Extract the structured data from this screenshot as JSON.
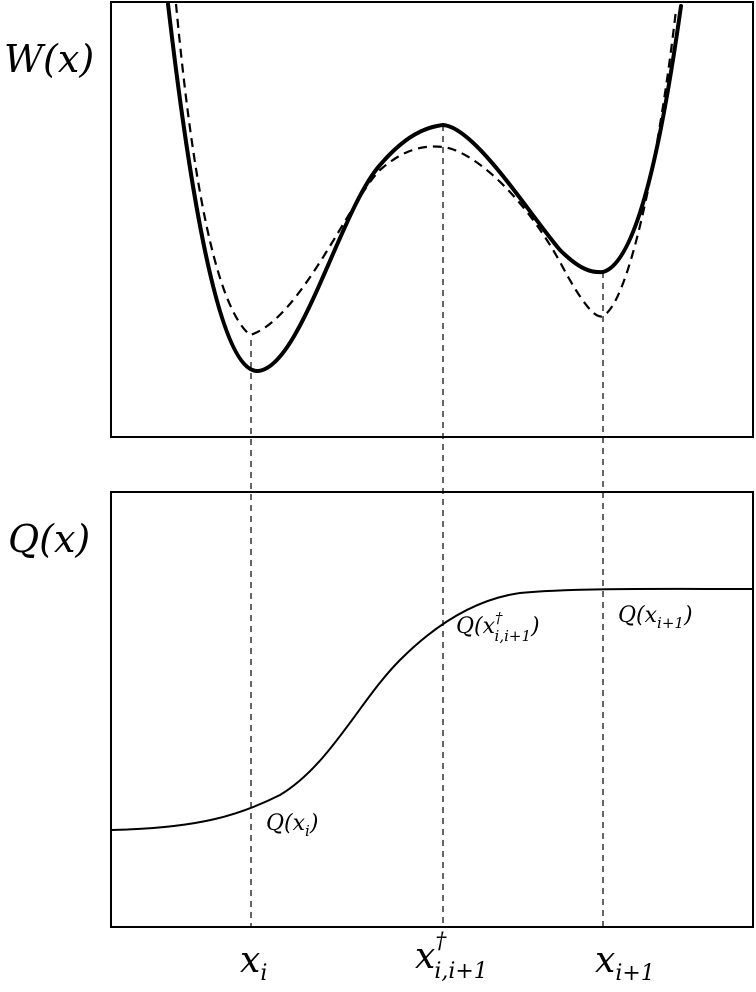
{
  "chart_data": [
    {
      "type": "line",
      "ylabel": "W(x)",
      "series": [
        {
          "style": "solid",
          "x": [
            0.9,
            1.0,
            1.3,
            1.7,
            2.0,
            2.5,
            2.97,
            3.5,
            4.0,
            4.45,
            4.8,
            5.0,
            5.15
          ],
          "values": [
            1.0,
            0.88,
            0.42,
            0.12,
            0.24,
            0.6,
            0.75,
            0.58,
            0.42,
            0.38,
            0.65,
            0.85,
            1.0
          ]
        },
        {
          "style": "dashed",
          "x": [
            0.9,
            1.0,
            1.3,
            1.7,
            2.0,
            2.5,
            2.97,
            3.5,
            4.0,
            4.45,
            4.8,
            5.0,
            5.15
          ],
          "values": [
            1.0,
            0.8,
            0.38,
            0.22,
            0.32,
            0.6,
            0.7,
            0.52,
            0.33,
            0.28,
            0.55,
            0.8,
            1.0
          ]
        }
      ]
    },
    {
      "type": "line",
      "ylabel": "Q(x)",
      "series": [
        {
          "style": "solid",
          "x": [
            0,
            1.0,
            2.0,
            3.0,
            4.0,
            5.0,
            6.0
          ],
          "values": [
            0.1,
            0.14,
            0.3,
            0.62,
            0.8,
            0.84,
            0.85
          ]
        }
      ]
    }
  ],
  "labels": {
    "w_axis": "W(x)",
    "q_axis": "Q(x)",
    "x_i": "x",
    "x_i_sub": "i",
    "x_dagger": "x",
    "x_dagger_sup": "†",
    "x_dagger_sub": "i,i+1",
    "x_next": "x",
    "x_next_sub": "i+1",
    "q_xi": "Q(x",
    "q_xi_sub": "i",
    "q_xi_close": ")",
    "q_dagger": "Q(x",
    "q_dagger_sup": "†",
    "q_dagger_sub": "i,i+1",
    "q_dagger_close": ")",
    "q_next": "Q(x",
    "q_next_sub": "i+1",
    "q_next_close": ")"
  }
}
